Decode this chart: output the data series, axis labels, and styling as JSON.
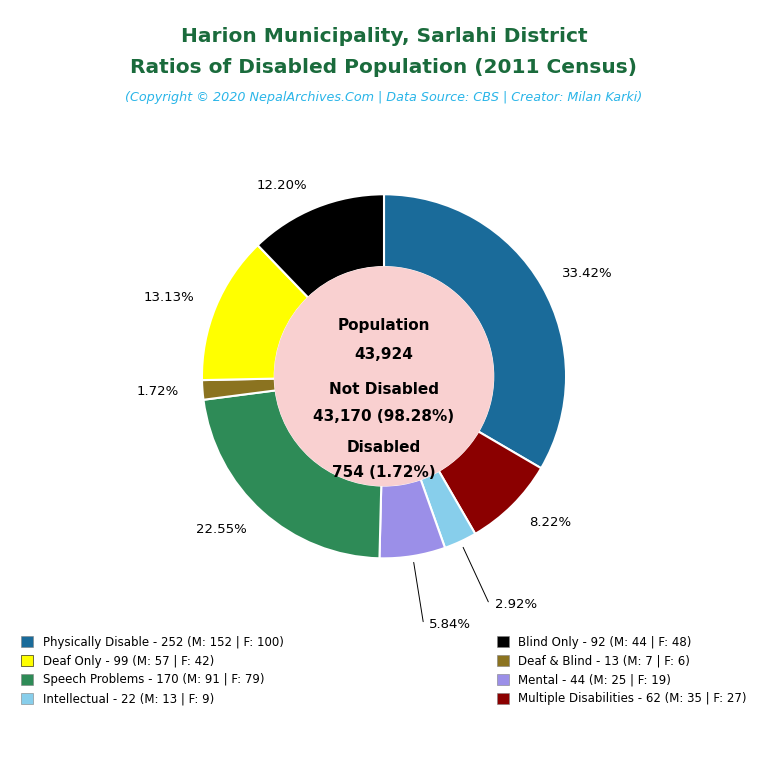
{
  "title_line1": "Harion Municipality, Sarlahi District",
  "title_line2": "Ratios of Disabled Population (2011 Census)",
  "subtitle": "(Copyright © 2020 NepalArchives.Com | Data Source: CBS | Creator: Milan Karki)",
  "title_color": "#1a6b3c",
  "subtitle_color": "#2ab5e8",
  "center_bg": "#f9d0d0",
  "slices": [
    {
      "label": "Physically Disable - 252 (M: 152 | F: 100)",
      "value": 252,
      "pct": 33.42,
      "color": "#1a6b9a"
    },
    {
      "label": "Multiple Disabilities - 62 (M: 35 | F: 27)",
      "value": 62,
      "pct": 8.22,
      "color": "#8b0000"
    },
    {
      "label": "Intellectual - 22 (M: 13 | F: 9)",
      "value": 22,
      "pct": 2.92,
      "color": "#87ceeb"
    },
    {
      "label": "Mental - 44 (M: 25 | F: 19)",
      "value": 44,
      "pct": 5.84,
      "color": "#9b8fe8"
    },
    {
      "label": "Speech Problems - 170 (M: 91 | F: 79)",
      "value": 170,
      "pct": 22.55,
      "color": "#2e8b57"
    },
    {
      "label": "Deaf & Blind - 13 (M: 7 | F: 6)",
      "value": 13,
      "pct": 1.72,
      "color": "#8b7320"
    },
    {
      "label": "Deaf Only - 99 (M: 57 | F: 42)",
      "value": 99,
      "pct": 13.13,
      "color": "#ffff00"
    },
    {
      "label": "Blind Only - 92 (M: 44 | F: 48)",
      "value": 92,
      "pct": 12.2,
      "color": "#000000"
    }
  ],
  "legend_left": [
    {
      "label": "Physically Disable - 252 (M: 152 | F: 100)",
      "color": "#1a6b9a"
    },
    {
      "label": "Deaf Only - 99 (M: 57 | F: 42)",
      "color": "#ffff00"
    },
    {
      "label": "Speech Problems - 170 (M: 91 | F: 79)",
      "color": "#2e8b57"
    },
    {
      "label": "Intellectual - 22 (M: 13 | F: 9)",
      "color": "#87ceeb"
    }
  ],
  "legend_right": [
    {
      "label": "Blind Only - 92 (M: 44 | F: 48)",
      "color": "#000000"
    },
    {
      "label": "Deaf & Blind - 13 (M: 7 | F: 6)",
      "color": "#8b7320"
    },
    {
      "label": "Mental - 44 (M: 25 | F: 19)",
      "color": "#9b8fe8"
    },
    {
      "label": "Multiple Disabilities - 62 (M: 35 | F: 27)",
      "color": "#8b0000"
    }
  ],
  "population": "43,924",
  "not_disabled": "43,170 (98.28%)",
  "disabled": "754 (1.72%)",
  "figsize": [
    7.68,
    7.68
  ],
  "dpi": 100
}
